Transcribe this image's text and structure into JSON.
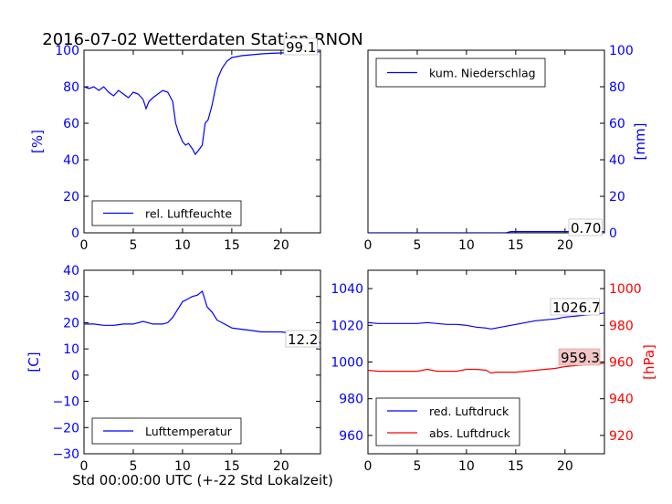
{
  "title": "2016-07-02 Wetterdaten Station RNON",
  "xlabel": "Std 00:00:00 UTC (+-22 Std Lokalzeit)",
  "colors": {
    "blue": "#0000ff",
    "red": "#ff0000",
    "text": "#000000",
    "annot_bg": "#f2c6c6"
  },
  "chart_data": [
    {
      "id": "humidity",
      "type": "line",
      "ylabel": "[%]",
      "xlim": [
        0,
        24
      ],
      "ylim": [
        0,
        100
      ],
      "xticks": [
        0,
        5,
        10,
        15,
        20
      ],
      "yticks": [
        0,
        20,
        40,
        60,
        80,
        100
      ],
      "legend": "lower left",
      "last_value_label": "99.1",
      "series": [
        {
          "name": "rel. Luftfeuchte",
          "color": "#0000ff",
          "x": [
            0,
            0.5,
            1,
            1.5,
            2,
            2.5,
            3,
            3.5,
            4,
            4.5,
            5,
            5.5,
            6,
            6.3,
            6.6,
            7,
            7.5,
            8,
            8.5,
            9,
            9.3,
            9.6,
            10,
            10.3,
            10.6,
            11,
            11.3,
            11.6,
            12,
            12.3,
            12.6,
            13,
            13.3,
            13.6,
            14,
            14.5,
            15,
            15.5,
            16,
            17,
            18,
            19,
            20,
            21,
            22,
            23,
            24
          ],
          "y": [
            80,
            79,
            80,
            78,
            80,
            77,
            75,
            78,
            76,
            74,
            77,
            76,
            73,
            68,
            72,
            74,
            76,
            78,
            77,
            72,
            60,
            55,
            50,
            48,
            49,
            46,
            43,
            45,
            48,
            60,
            62,
            70,
            78,
            85,
            90,
            94,
            96,
            96.5,
            97,
            97.5,
            98,
            98.3,
            98.5,
            98.7,
            98.9,
            99,
            99.1
          ]
        }
      ]
    },
    {
      "id": "precipitation",
      "type": "line",
      "ylabel": "[mm]",
      "xlim": [
        0,
        24
      ],
      "ylim": [
        0,
        100
      ],
      "xticks": [
        0,
        5,
        10,
        15,
        20
      ],
      "yticks": [
        0,
        20,
        40,
        60,
        80,
        100
      ],
      "legend": "upper left",
      "last_value_label": "0.70",
      "series": [
        {
          "name": "kum. Niederschlag",
          "color": "#0000ff",
          "x": [
            0,
            14,
            14.5,
            24
          ],
          "y": [
            0,
            0,
            0.7,
            0.7
          ]
        }
      ]
    },
    {
      "id": "temperature",
      "type": "line",
      "ylabel": "[C]",
      "xlim": [
        0,
        24
      ],
      "ylim": [
        -30,
        40
      ],
      "xticks": [
        0,
        5,
        10,
        15,
        20
      ],
      "yticks": [
        -30,
        -20,
        -10,
        0,
        10,
        20,
        30,
        40
      ],
      "legend": "lower left",
      "last_value_label": "12.2",
      "series": [
        {
          "name": "Lufttemperatur",
          "color": "#0000ff",
          "x": [
            0,
            1,
            2,
            3,
            4,
            5,
            6,
            7,
            8,
            8.5,
            9,
            9.5,
            10,
            10.5,
            11,
            11.5,
            12,
            12.5,
            13,
            13.5,
            14,
            15,
            16,
            17,
            18,
            19,
            20,
            21,
            22,
            23,
            24
          ],
          "y": [
            19.5,
            19.5,
            19,
            19,
            19.5,
            19.5,
            20.5,
            19.5,
            19.5,
            20,
            22,
            25,
            28,
            29,
            30,
            30.5,
            32,
            26,
            24,
            21,
            20,
            18,
            17.5,
            17,
            16.5,
            16.5,
            16.5,
            16,
            15,
            13.5,
            12.2
          ]
        }
      ]
    },
    {
      "id": "pressure",
      "type": "line",
      "ylabel": "[hPa]",
      "xlim": [
        0,
        24
      ],
      "ylim": [
        950,
        1050
      ],
      "yticks": [
        960,
        980,
        1000,
        1020,
        1040
      ],
      "ylim_right": [
        910,
        1010
      ],
      "yticks_right": [
        920,
        940,
        960,
        980,
        1000
      ],
      "xticks": [
        0,
        5,
        10,
        15,
        20
      ],
      "legend": "lower left",
      "series": [
        {
          "name": "red. Luftdruck",
          "color": "#0000ff",
          "axis": "left",
          "last_value_label": "1026.7",
          "x": [
            0,
            1,
            2,
            3,
            4,
            5,
            6,
            7,
            8,
            9,
            10,
            11,
            12,
            12.5,
            13,
            14,
            15,
            16,
            17,
            18,
            19,
            20,
            21,
            22,
            23,
            24
          ],
          "y": [
            1021.5,
            1021,
            1021,
            1021,
            1021,
            1021,
            1021.5,
            1021,
            1020.5,
            1020.5,
            1020,
            1019,
            1018.5,
            1018,
            1018.5,
            1019.5,
            1020.5,
            1021.5,
            1022.5,
            1023,
            1023.5,
            1024.5,
            1025,
            1025.5,
            1026,
            1026.7
          ]
        },
        {
          "name": "abs. Luftdruck",
          "color": "#ff0000",
          "axis": "right",
          "last_value_label": "959.3",
          "x": [
            0,
            1,
            2,
            3,
            4,
            5,
            6,
            6.5,
            7,
            8,
            9,
            10,
            10.5,
            11,
            12,
            12.5,
            13,
            14,
            15,
            16,
            17,
            18,
            19,
            20,
            21,
            22,
            23,
            24
          ],
          "y": [
            955.5,
            955,
            955,
            955,
            955,
            955,
            956,
            955.5,
            955,
            955,
            955,
            956,
            956,
            956,
            955.5,
            954,
            954.5,
            954.5,
            954.5,
            955,
            955.5,
            956,
            956.5,
            957.5,
            958,
            958.5,
            959,
            959.3
          ]
        }
      ]
    }
  ]
}
